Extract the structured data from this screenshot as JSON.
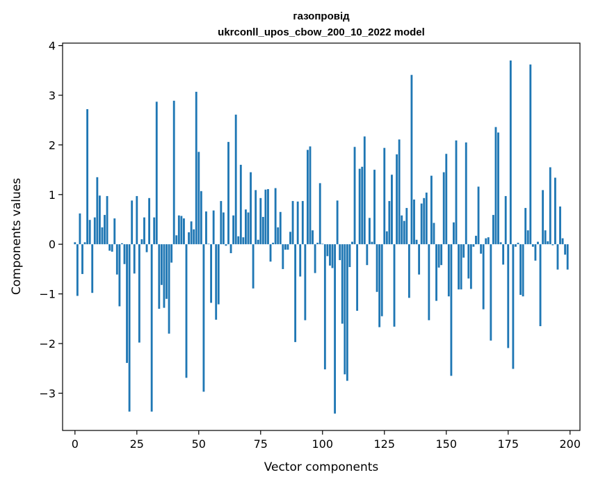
{
  "chart_data": {
    "type": "bar",
    "title": "газопровід",
    "subtitle": "ukrconll_upos_cbow_200_10_2022 model",
    "xlabel": "Vector components",
    "ylabel": "Components values",
    "xlim": [
      -5,
      204
    ],
    "ylim": [
      -3.75,
      4.05
    ],
    "xticks": [
      0,
      25,
      50,
      75,
      100,
      125,
      150,
      175,
      200
    ],
    "yticks": [
      -3,
      -2,
      -1,
      0,
      1,
      2,
      3,
      4
    ],
    "xtick_labels": [
      "0",
      "25",
      "50",
      "75",
      "100",
      "125",
      "150",
      "175",
      "200"
    ],
    "ytick_labels": [
      "−3",
      "−2",
      "−1",
      "0",
      "1",
      "2",
      "3",
      "4"
    ],
    "grid": false,
    "bar_color": "#1f77b4",
    "x": [
      0,
      1,
      2,
      3,
      4,
      5,
      6,
      7,
      8,
      9,
      10,
      11,
      12,
      13,
      14,
      15,
      16,
      17,
      18,
      19,
      20,
      21,
      22,
      23,
      24,
      25,
      26,
      27,
      28,
      29,
      30,
      31,
      32,
      33,
      34,
      35,
      36,
      37,
      38,
      39,
      40,
      41,
      42,
      43,
      44,
      45,
      46,
      47,
      48,
      49,
      50,
      51,
      52,
      53,
      54,
      55,
      56,
      57,
      58,
      59,
      60,
      61,
      62,
      63,
      64,
      65,
      66,
      67,
      68,
      69,
      70,
      71,
      72,
      73,
      74,
      75,
      76,
      77,
      78,
      79,
      80,
      81,
      82,
      83,
      84,
      85,
      86,
      87,
      88,
      89,
      90,
      91,
      92,
      93,
      94,
      95,
      96,
      97,
      98,
      99,
      100,
      101,
      102,
      103,
      104,
      105,
      106,
      107,
      108,
      109,
      110,
      111,
      112,
      113,
      114,
      115,
      116,
      117,
      118,
      119,
      120,
      121,
      122,
      123,
      124,
      125,
      126,
      127,
      128,
      129,
      130,
      131,
      132,
      133,
      134,
      135,
      136,
      137,
      138,
      139,
      140,
      141,
      142,
      143,
      144,
      145,
      146,
      147,
      148,
      149,
      150,
      151,
      152,
      153,
      154,
      155,
      156,
      157,
      158,
      159,
      160,
      161,
      162,
      163,
      164,
      165,
      166,
      167,
      168,
      169,
      170,
      171,
      172,
      173,
      174,
      175,
      176,
      177,
      178,
      179,
      180,
      181,
      182,
      183,
      184,
      185,
      186,
      187,
      188,
      189,
      190,
      191,
      192,
      193,
      194,
      195,
      196,
      197,
      198,
      199
    ],
    "values": [
      0.04,
      -1.04,
      0.62,
      -0.6,
      0.04,
      2.72,
      0.49,
      -0.98,
      0.54,
      1.35,
      0.98,
      0.34,
      0.59,
      0.97,
      -0.13,
      -0.15,
      0.52,
      -0.61,
      -1.25,
      0.02,
      -0.4,
      -2.39,
      -3.37,
      0.88,
      -0.59,
      0.97,
      -1.98,
      0.1,
      0.54,
      -0.16,
      0.93,
      -3.37,
      0.54,
      2.87,
      -1.3,
      -0.82,
      -1.28,
      -1.1,
      -1.8,
      -0.37,
      2.89,
      0.18,
      0.58,
      0.57,
      0.52,
      -2.69,
      0.24,
      0.46,
      0.3,
      3.07,
      1.86,
      1.07,
      -2.97,
      0.66,
      0.01,
      -1.18,
      0.68,
      -1.52,
      -1.21,
      0.87,
      0.64,
      -0.03,
      2.06,
      -0.18,
      0.58,
      2.61,
      0.16,
      1.6,
      0.14,
      0.7,
      0.64,
      1.45,
      -0.89,
      1.09,
      0.09,
      0.93,
      0.55,
      1.1,
      1.11,
      -0.35,
      0.03,
      1.13,
      0.34,
      0.65,
      -0.5,
      -0.11,
      -0.11,
      0.25,
      0.87,
      -1.97,
      0.86,
      -0.65,
      0.87,
      -1.53,
      1.9,
      1.97,
      0.28,
      -0.58,
      0.03,
      1.23,
      0.01,
      -2.52,
      -0.24,
      -0.43,
      -0.48,
      -3.41,
      0.88,
      -0.32,
      -1.6,
      -2.62,
      -2.75,
      -0.46,
      0.05,
      1.96,
      -1.34,
      1.52,
      1.56,
      2.17,
      -0.42,
      0.53,
      0.05,
      1.5,
      -0.96,
      -1.67,
      -1.45,
      1.94,
      0.26,
      0.87,
      1.4,
      -1.66,
      1.81,
      2.11,
      0.58,
      0.47,
      0.73,
      -1.08,
      3.41,
      0.9,
      0.09,
      -0.61,
      0.82,
      0.93,
      1.04,
      -1.53,
      1.38,
      0.43,
      -1.14,
      -0.47,
      -0.42,
      1.45,
      1.82,
      -1.05,
      -2.65,
      0.44,
      2.09,
      -0.91,
      -0.91,
      -0.27,
      2.05,
      -0.69,
      -0.9,
      -0.05,
      0.17,
      1.16,
      -0.19,
      -1.31,
      0.12,
      0.14,
      -1.94,
      0.59,
      2.36,
      2.25,
      0.04,
      -0.41,
      0.97,
      -2.09,
      3.7,
      -2.51,
      -0.05,
      0.03,
      -1.02,
      -1.05,
      0.73,
      0.28,
      3.62,
      -0.05,
      -0.33,
      0.05,
      -1.65,
      1.09,
      0.28,
      0.06,
      1.55,
      -0.02,
      1.34,
      -0.51,
      0.76,
      0.12,
      -0.21,
      -0.51
    ]
  }
}
